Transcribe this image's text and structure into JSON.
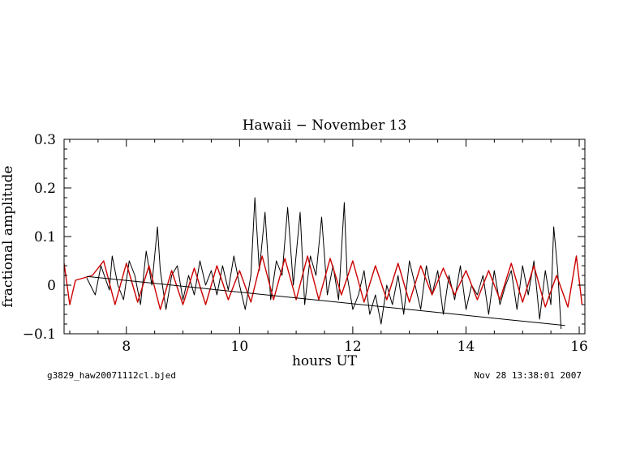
{
  "chart_data": {
    "type": "line",
    "title": "Hawaii − November 13",
    "xlabel": "hours UT",
    "ylabel": "fractional amplitude",
    "xlim": [
      6.9,
      16.1
    ],
    "ylim": [
      -0.1,
      0.3
    ],
    "x_ticks": [
      8,
      10,
      12,
      14,
      16
    ],
    "x_tick_labels": [
      "8",
      "10",
      "12",
      "14",
      "16"
    ],
    "y_ticks": [
      -0.1,
      0,
      0.1,
      0.2,
      0.3
    ],
    "y_tick_labels": [
      "−0.1",
      "0",
      "0.1",
      "0.2",
      "0.3"
    ],
    "grid": false,
    "series": [
      {
        "color": "#000000",
        "style": "noisy-data",
        "x": [
          7.3,
          7.45,
          7.55,
          7.7,
          7.75,
          7.85,
          7.95,
          8.05,
          8.15,
          8.25,
          8.35,
          8.45,
          8.55,
          8.6,
          8.7,
          8.8,
          8.9,
          9.0,
          9.1,
          9.2,
          9.3,
          9.4,
          9.5,
          9.6,
          9.7,
          9.8,
          9.9,
          10.0,
          10.1,
          10.2,
          10.27,
          10.35,
          10.45,
          10.55,
          10.65,
          10.75,
          10.85,
          10.95,
          11.07,
          11.15,
          11.25,
          11.35,
          11.45,
          11.55,
          11.65,
          11.75,
          11.85,
          11.9,
          12.0,
          12.1,
          12.2,
          12.3,
          12.4,
          12.5,
          12.6,
          12.7,
          12.8,
          12.9,
          13.0,
          13.1,
          13.2,
          13.3,
          13.4,
          13.5,
          13.6,
          13.7,
          13.8,
          13.9,
          14.0,
          14.1,
          14.2,
          14.3,
          14.4,
          14.5,
          14.6,
          14.7,
          14.8,
          14.9,
          15.0,
          15.1,
          15.2,
          15.3,
          15.4,
          15.5,
          15.55,
          15.62,
          15.68
        ],
        "y": [
          0.015,
          -0.02,
          0.04,
          -0.01,
          0.06,
          0.0,
          -0.03,
          0.05,
          0.02,
          -0.04,
          0.07,
          0.0,
          0.12,
          0.03,
          -0.05,
          0.02,
          0.04,
          -0.03,
          0.02,
          -0.02,
          0.05,
          0.0,
          0.03,
          -0.02,
          0.04,
          -0.01,
          0.06,
          0.0,
          -0.05,
          0.02,
          0.18,
          0.03,
          0.15,
          -0.03,
          0.05,
          0.02,
          0.16,
          0.0,
          0.15,
          -0.04,
          0.06,
          0.02,
          0.14,
          -0.02,
          0.04,
          -0.03,
          0.17,
          0.02,
          -0.05,
          -0.02,
          0.03,
          -0.06,
          -0.02,
          -0.08,
          0.0,
          -0.04,
          0.02,
          -0.06,
          0.05,
          0.0,
          -0.05,
          0.04,
          -0.02,
          0.03,
          -0.06,
          0.02,
          -0.03,
          0.04,
          -0.05,
          0.0,
          -0.02,
          0.02,
          -0.06,
          0.03,
          -0.04,
          0.0,
          0.03,
          -0.05,
          0.04,
          -0.02,
          0.05,
          -0.07,
          0.03,
          -0.04,
          0.12,
          0.03,
          -0.09
        ]
      },
      {
        "color": "#cc0000",
        "style": "smooth-fit",
        "x": [
          6.9,
          7.0,
          7.1,
          7.25,
          7.4,
          7.6,
          7.8,
          8.0,
          8.2,
          8.4,
          8.6,
          8.8,
          9.0,
          9.2,
          9.4,
          9.6,
          9.8,
          10.0,
          10.2,
          10.4,
          10.6,
          10.8,
          11.0,
          11.2,
          11.4,
          11.6,
          11.8,
          12.0,
          12.2,
          12.4,
          12.6,
          12.8,
          13.0,
          13.2,
          13.4,
          13.6,
          13.8,
          14.0,
          14.2,
          14.4,
          14.6,
          14.8,
          15.0,
          15.2,
          15.4,
          15.6,
          15.8,
          15.95,
          16.05
        ],
        "y": [
          0.045,
          -0.04,
          0.01,
          0.015,
          0.02,
          0.05,
          -0.04,
          0.045,
          -0.035,
          0.04,
          -0.05,
          0.03,
          -0.04,
          0.035,
          -0.04,
          0.04,
          -0.03,
          0.03,
          -0.035,
          0.06,
          -0.03,
          0.055,
          -0.03,
          0.06,
          -0.03,
          0.055,
          -0.02,
          0.05,
          -0.035,
          0.04,
          -0.03,
          0.045,
          -0.035,
          0.04,
          -0.02,
          0.035,
          -0.02,
          0.03,
          -0.03,
          0.03,
          -0.03,
          0.045,
          -0.035,
          0.04,
          -0.045,
          0.02,
          -0.045,
          0.06,
          -0.04
        ]
      },
      {
        "color": "#000000",
        "style": "trend-line",
        "x": [
          7.3,
          15.75
        ],
        "y": [
          0.018,
          -0.083
        ]
      }
    ]
  },
  "footer": {
    "left": "g3829_haw20071112cl.bjed",
    "right": "Nov 28 13:38:01 2007"
  }
}
